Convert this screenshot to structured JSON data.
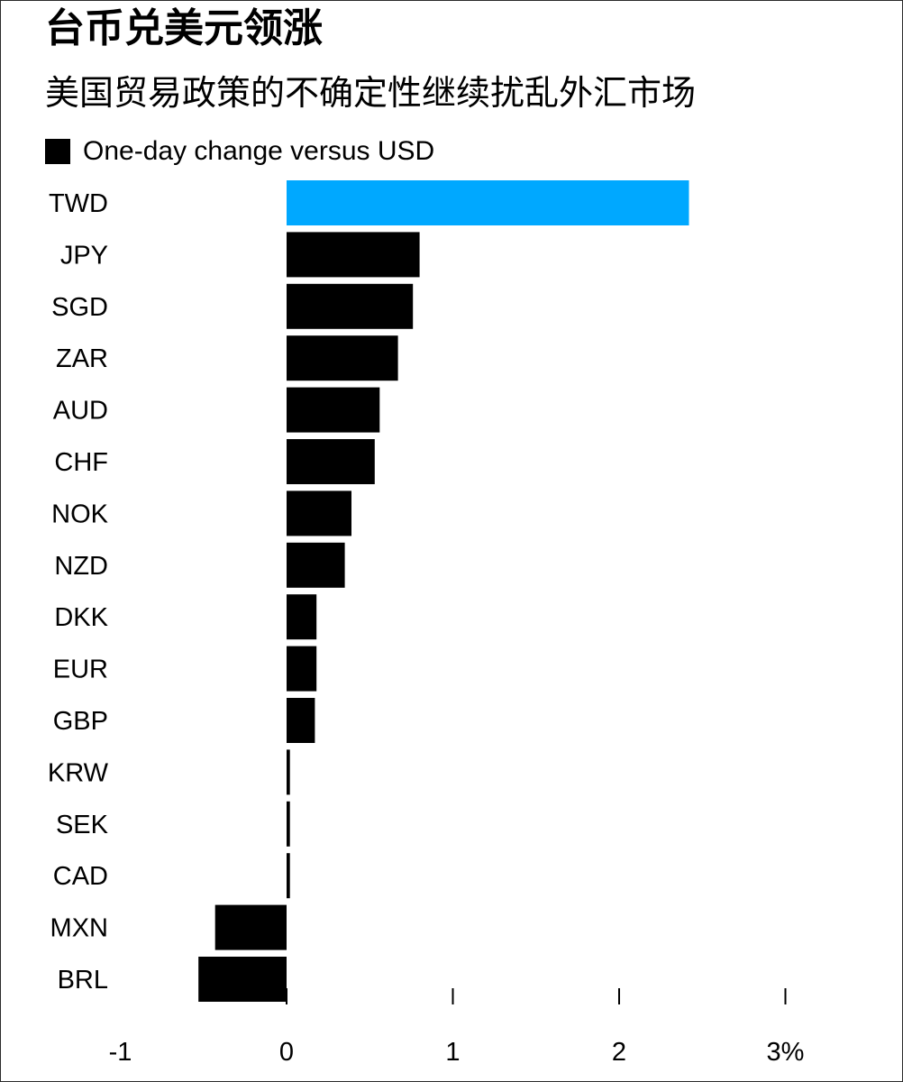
{
  "title": "台币兑美元领涨",
  "subtitle": "美国贸易政策的不确定性继续扰乱外汇市场",
  "legend": {
    "label": "One-day change versus USD",
    "color": "#000000"
  },
  "colors": {
    "highlight": "#00a8ff",
    "bar": "#000000",
    "text": "#000000",
    "background": "#ffffff"
  },
  "chart_data": {
    "type": "bar",
    "orientation": "horizontal",
    "title": "台币兑美元领涨",
    "subtitle": "美国贸易政策的不确定性继续扰乱外汇市场",
    "categories": [
      "TWD",
      "JPY",
      "SGD",
      "ZAR",
      "AUD",
      "CHF",
      "NOK",
      "NZD",
      "DKK",
      "EUR",
      "GBP",
      "KRW",
      "SEK",
      "CAD",
      "MXN",
      "BRL"
    ],
    "series": [
      {
        "name": "One-day change versus USD",
        "values": [
          2.42,
          0.8,
          0.76,
          0.67,
          0.56,
          0.53,
          0.39,
          0.35,
          0.18,
          0.18,
          0.17,
          0.02,
          0.02,
          0.02,
          -0.43,
          -0.53
        ]
      }
    ],
    "highlight_category": "TWD",
    "xlim": [
      -1,
      3
    ],
    "xticks": [
      -1,
      0,
      1,
      2,
      3
    ],
    "xtick_labels": [
      "-1",
      "0",
      "1",
      "2",
      "3%"
    ],
    "xlabel": "",
    "ylabel": "",
    "grid": false
  }
}
